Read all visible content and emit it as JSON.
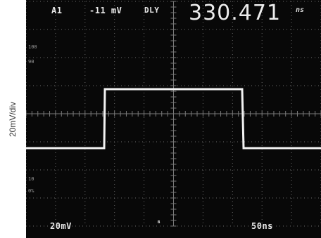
{
  "scope": {
    "vertical_scale_label": "20mV/div",
    "channel": "A1",
    "trigger_level": "-11 mV",
    "delay_label": "DLY",
    "delay_value": "330.471",
    "delay_unit": "ns",
    "volts_per_div": "20mV",
    "time_per_div": "50ns",
    "markers": {
      "top_100": "100",
      "top_90": "90",
      "bottom_10": "10",
      "bottom_0": "0%"
    }
  }
}
